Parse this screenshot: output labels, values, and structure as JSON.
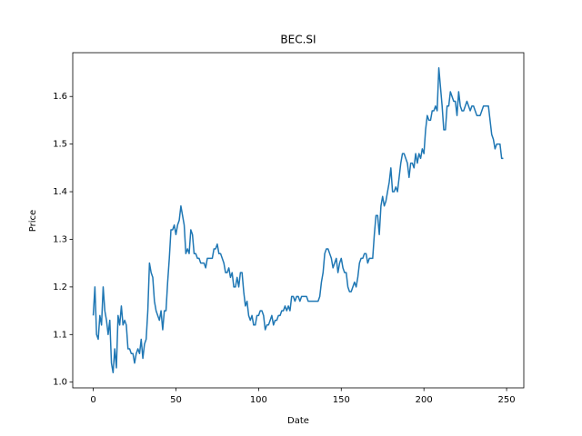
{
  "chart_data": {
    "type": "line",
    "title": "BEC.SI",
    "x_label": "Date",
    "y_label": "Price",
    "x": [
      0,
      1,
      2,
      3,
      4,
      5,
      6,
      7,
      8,
      9,
      10,
      11,
      12,
      13,
      14,
      15,
      16,
      17,
      18,
      19,
      20,
      21,
      22,
      23,
      24,
      25,
      26,
      27,
      28,
      29,
      30,
      31,
      32,
      33,
      34,
      35,
      36,
      37,
      38,
      39,
      40,
      41,
      42,
      43,
      44,
      45,
      46,
      47,
      48,
      49,
      50,
      51,
      52,
      53,
      54,
      55,
      56,
      57,
      58,
      59,
      60,
      61,
      62,
      63,
      64,
      65,
      66,
      67,
      68,
      69,
      70,
      71,
      72,
      73,
      74,
      75,
      76,
      77,
      78,
      79,
      80,
      81,
      82,
      83,
      84,
      85,
      86,
      87,
      88,
      89,
      90,
      91,
      92,
      93,
      94,
      95,
      96,
      97,
      98,
      99,
      100,
      101,
      102,
      103,
      104,
      105,
      106,
      107,
      108,
      109,
      110,
      111,
      112,
      113,
      114,
      115,
      116,
      117,
      118,
      119,
      120,
      121,
      122,
      123,
      124,
      125,
      126,
      127,
      128,
      129,
      130,
      131,
      132,
      133,
      134,
      135,
      136,
      137,
      138,
      139,
      140,
      141,
      142,
      143,
      144,
      145,
      146,
      147,
      148,
      149,
      150,
      151,
      152,
      153,
      154,
      155,
      156,
      157,
      158,
      159,
      160,
      161,
      162,
      163,
      164,
      165,
      166,
      167,
      168,
      169,
      170,
      171,
      172,
      173,
      174,
      175,
      176,
      177,
      178,
      179,
      180,
      181,
      182,
      183,
      184,
      185,
      186,
      187,
      188,
      189,
      190,
      191,
      192,
      193,
      194,
      195,
      196,
      197,
      198,
      199,
      200,
      201,
      202,
      203,
      204,
      205,
      206,
      207,
      208,
      209,
      210,
      211,
      212,
      213,
      214,
      215,
      216,
      217,
      218,
      219,
      220,
      221,
      222,
      223,
      224,
      225,
      226,
      227,
      228,
      229,
      230,
      231,
      232,
      233,
      234,
      235,
      236,
      237,
      238,
      239,
      240,
      241,
      242,
      243,
      244,
      245,
      246,
      247,
      248
    ],
    "series": [
      {
        "color": "#1f77b4",
        "values": [
          1.14,
          1.2,
          1.1,
          1.09,
          1.14,
          1.12,
          1.2,
          1.15,
          1.13,
          1.1,
          1.13,
          1.04,
          1.02,
          1.07,
          1.03,
          1.14,
          1.12,
          1.16,
          1.12,
          1.13,
          1.12,
          1.07,
          1.07,
          1.06,
          1.06,
          1.04,
          1.06,
          1.07,
          1.06,
          1.09,
          1.05,
          1.08,
          1.09,
          1.15,
          1.25,
          1.23,
          1.22,
          1.17,
          1.15,
          1.14,
          1.13,
          1.15,
          1.11,
          1.15,
          1.15,
          1.21,
          1.26,
          1.32,
          1.32,
          1.33,
          1.31,
          1.33,
          1.34,
          1.37,
          1.35,
          1.33,
          1.27,
          1.28,
          1.27,
          1.32,
          1.31,
          1.27,
          1.27,
          1.26,
          1.26,
          1.25,
          1.25,
          1.25,
          1.24,
          1.26,
          1.26,
          1.26,
          1.26,
          1.28,
          1.28,
          1.29,
          1.27,
          1.27,
          1.26,
          1.25,
          1.23,
          1.23,
          1.24,
          1.22,
          1.23,
          1.2,
          1.2,
          1.22,
          1.2,
          1.23,
          1.23,
          1.19,
          1.16,
          1.17,
          1.14,
          1.13,
          1.14,
          1.12,
          1.12,
          1.14,
          1.14,
          1.15,
          1.15,
          1.14,
          1.11,
          1.12,
          1.12,
          1.13,
          1.14,
          1.12,
          1.13,
          1.13,
          1.14,
          1.14,
          1.15,
          1.15,
          1.16,
          1.15,
          1.16,
          1.15,
          1.18,
          1.18,
          1.17,
          1.18,
          1.18,
          1.17,
          1.18,
          1.18,
          1.18,
          1.18,
          1.17,
          1.17,
          1.17,
          1.17,
          1.17,
          1.17,
          1.17,
          1.18,
          1.21,
          1.23,
          1.27,
          1.28,
          1.28,
          1.27,
          1.26,
          1.24,
          1.25,
          1.26,
          1.23,
          1.25,
          1.26,
          1.24,
          1.23,
          1.23,
          1.2,
          1.19,
          1.19,
          1.2,
          1.21,
          1.2,
          1.22,
          1.25,
          1.26,
          1.26,
          1.27,
          1.27,
          1.25,
          1.26,
          1.26,
          1.26,
          1.31,
          1.35,
          1.35,
          1.31,
          1.37,
          1.39,
          1.37,
          1.38,
          1.4,
          1.42,
          1.45,
          1.4,
          1.4,
          1.41,
          1.4,
          1.43,
          1.46,
          1.48,
          1.48,
          1.47,
          1.46,
          1.43,
          1.46,
          1.46,
          1.45,
          1.48,
          1.46,
          1.48,
          1.47,
          1.49,
          1.48,
          1.53,
          1.56,
          1.55,
          1.55,
          1.57,
          1.57,
          1.58,
          1.57,
          1.66,
          1.62,
          1.58,
          1.53,
          1.53,
          1.58,
          1.58,
          1.61,
          1.6,
          1.59,
          1.59,
          1.56,
          1.61,
          1.58,
          1.57,
          1.57,
          1.58,
          1.59,
          1.58,
          1.57,
          1.58,
          1.58,
          1.57,
          1.56,
          1.56,
          1.56,
          1.57,
          1.58,
          1.58,
          1.58,
          1.58,
          1.55,
          1.52,
          1.51,
          1.49,
          1.5,
          1.5,
          1.5,
          1.47,
          1.47
        ]
      }
    ],
    "xlim": [
      -12.4,
      260.4
    ],
    "ylim": [
      0.988,
      1.692
    ],
    "xticks": [
      0,
      50,
      100,
      150,
      200,
      250
    ],
    "yticks": [
      {
        "value": 1,
        "label": "1.0"
      },
      1.1,
      1.2,
      1.3,
      1.4,
      1.5,
      1.6
    ]
  }
}
